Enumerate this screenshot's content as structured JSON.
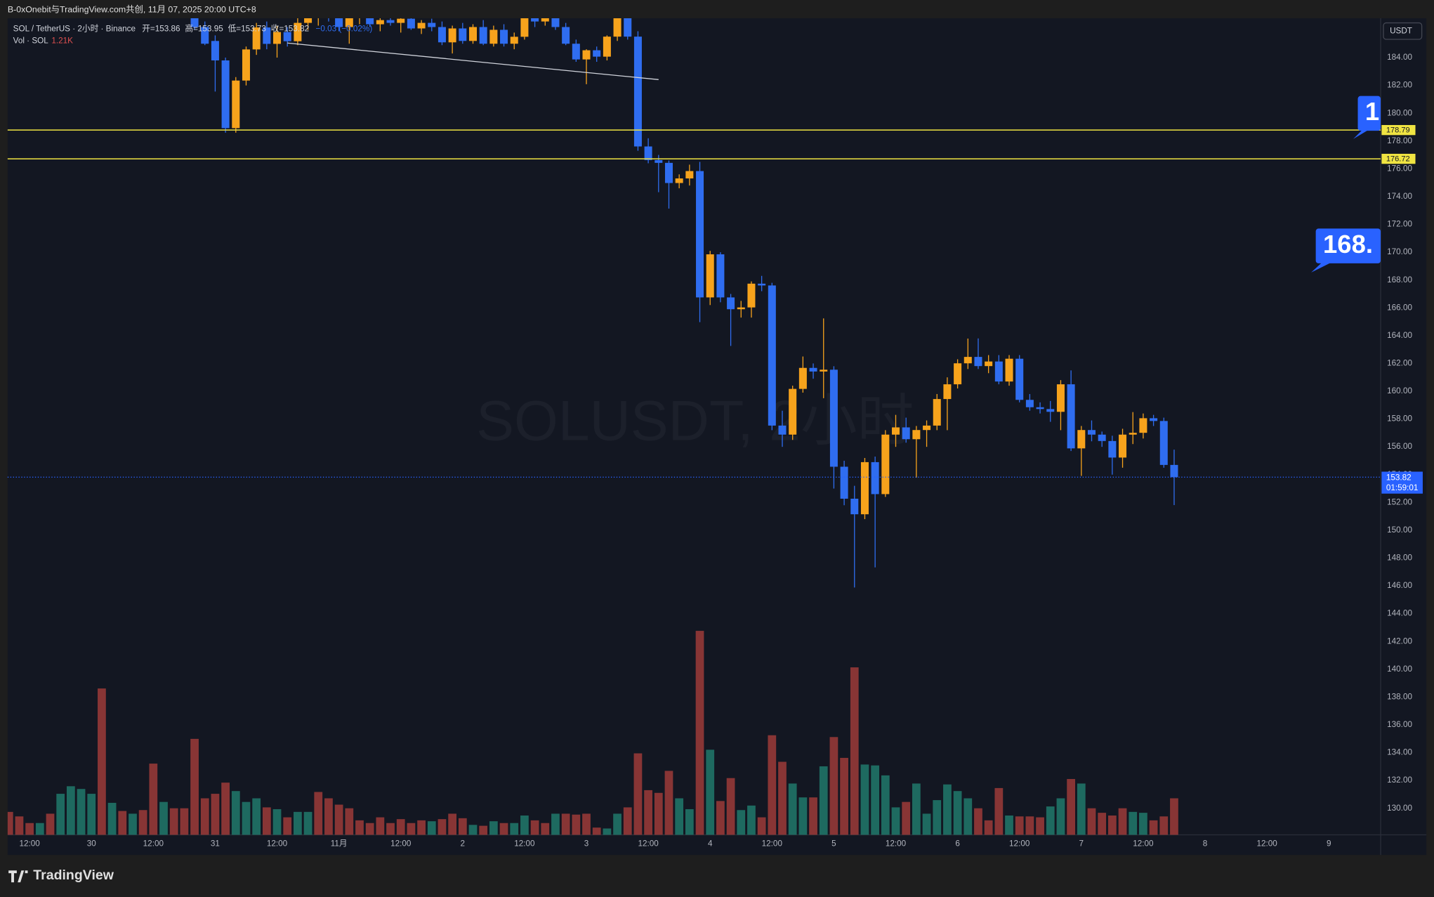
{
  "header": {
    "title": "B-0xOnebit与TradingView.com共创, 11月 07, 2025 20:00 UTC+8"
  },
  "chart_data": {
    "type": "candlestick",
    "legend": {
      "symbol": "SOL / TetherUS · 2小时 · Binance",
      "open": "开=153.86",
      "high": "高=153.95",
      "low": "低=153.73",
      "close": "收=153.82",
      "change": "−0.03 (−0.02%)",
      "volume": "Vol · SOL"
    },
    "currency": "USDT",
    "watermark": "SOLUSDT, 2小时",
    "up_color": "#f7a31c",
    "down_color": "#2f6df0",
    "x": [
      32,
      34,
      36,
      38,
      40,
      42,
      44,
      46,
      48,
      50,
      52,
      54,
      56,
      58,
      60,
      62,
      64,
      66,
      68,
      70,
      72,
      74,
      76,
      78,
      80,
      82,
      84,
      86,
      88,
      90,
      92,
      94,
      96,
      98,
      100,
      102,
      104,
      106,
      108,
      110,
      112,
      114,
      116,
      118,
      120,
      122,
      124,
      126,
      128,
      130,
      132,
      134,
      136,
      138,
      140,
      142,
      144,
      146,
      148,
      150,
      152,
      154,
      156,
      158,
      160,
      162,
      164,
      166,
      168,
      170,
      172,
      174,
      176,
      178,
      180,
      182,
      184,
      186,
      188,
      190,
      192,
      194,
      196,
      198,
      200,
      202,
      204,
      206,
      208,
      210,
      212,
      214,
      216,
      218,
      220,
      222
    ],
    "open": [
      187.5,
      186.2,
      185.2,
      183.8,
      178.93,
      182.35,
      184.59,
      186.17,
      184.99,
      185.84,
      185.18,
      186.5,
      187.0,
      187.3,
      186.9,
      186.2,
      186.9,
      187.0,
      186.4,
      186.7,
      186.5,
      186.8,
      186.1,
      186.5,
      186.2,
      185.1,
      186.1,
      185.2,
      186.2,
      185.0,
      186.0,
      185.0,
      185.5,
      186.9,
      186.6,
      187.0,
      186.2,
      185.0,
      183.87,
      184.53,
      184.07,
      185.51,
      186.95,
      185.51,
      177.61,
      176.63,
      176.43,
      174.98,
      175.31,
      175.84,
      166.75,
      169.85,
      166.75,
      165.9,
      166.03,
      167.74,
      167.61,
      157.53,
      156.88,
      160.17,
      161.68,
      161.42,
      161.55,
      154.57,
      152.27,
      151.15,
      154.9,
      152.6,
      156.88,
      157.4,
      156.55,
      157.21,
      157.53,
      159.44,
      160.5,
      162.01,
      162.47,
      161.81,
      162.14,
      160.7,
      162.34,
      159.38,
      158.85,
      158.72,
      158.52,
      160.5,
      155.89,
      157.21,
      156.88,
      156.42,
      155.23,
      156.88,
      157.01,
      158.06,
      157.86,
      154.7
    ],
    "high": [
      187.9,
      186.6,
      185.6,
      184.0,
      182.6,
      184.8,
      186.5,
      186.6,
      186.3,
      186.2,
      187.0,
      187.3,
      187.6,
      187.8,
      187.4,
      187.1,
      187.3,
      187.5,
      186.9,
      187.2,
      186.9,
      187.2,
      186.7,
      186.8,
      186.6,
      186.3,
      186.5,
      186.4,
      186.7,
      186.3,
      186.4,
      185.8,
      187.2,
      187.4,
      187.3,
      187.4,
      186.5,
      185.3,
      184.6,
      184.8,
      185.6,
      187.3,
      187.4,
      185.9,
      178.2,
      177.0,
      176.6,
      175.6,
      176.3,
      176.5,
      170.1,
      170.0,
      167.0,
      166.5,
      167.9,
      168.3,
      167.8,
      158.6,
      160.4,
      162.5,
      162.0,
      165.24,
      161.8,
      155.0,
      153.2,
      155.2,
      155.3,
      157.2,
      158.3,
      158.1,
      157.5,
      157.9,
      159.8,
      161.0,
      162.3,
      163.79,
      163.8,
      162.6,
      162.6,
      162.6,
      162.6,
      159.8,
      159.2,
      159.3,
      160.8,
      161.5,
      157.5,
      157.9,
      157.1,
      156.8,
      157.3,
      158.5,
      158.4,
      158.3,
      158.1,
      155.8
    ],
    "low": [
      186.0,
      184.9,
      181.56,
      178.6,
      178.6,
      182.0,
      184.2,
      184.6,
      184.0,
      184.8,
      184.9,
      186.0,
      186.3,
      186.6,
      185.9,
      185.0,
      186.4,
      186.2,
      185.9,
      186.3,
      185.8,
      186.0,
      185.7,
      185.9,
      184.9,
      184.3,
      185.0,
      185.0,
      184.9,
      184.8,
      184.8,
      184.6,
      185.3,
      186.2,
      186.3,
      186.0,
      184.9,
      183.7,
      182.09,
      183.7,
      183.8,
      185.2,
      185.3,
      177.3,
      176.4,
      174.32,
      173.14,
      174.6,
      174.8,
      164.97,
      166.2,
      166.4,
      163.26,
      165.3,
      165.3,
      167.2,
      157.2,
      156.0,
      156.5,
      159.9,
      160.9,
      159.5,
      153.0,
      151.8,
      145.88,
      150.8,
      147.33,
      152.4,
      156.0,
      156.3,
      153.78,
      156.0,
      157.2,
      157.2,
      160.2,
      161.6,
      161.6,
      161.3,
      160.5,
      160.4,
      159.2,
      158.6,
      158.4,
      157.8,
      157.2,
      155.7,
      153.91,
      156.4,
      156.0,
      154.0,
      154.5,
      156.2,
      156.6,
      157.5,
      154.5,
      151.81
    ],
    "close": [
      186.2,
      185.0,
      183.8,
      178.93,
      182.35,
      184.59,
      186.17,
      184.99,
      185.84,
      185.18,
      186.5,
      186.9,
      187.3,
      186.9,
      186.2,
      186.9,
      187.0,
      186.4,
      186.7,
      186.5,
      186.8,
      186.1,
      186.5,
      186.2,
      185.1,
      186.1,
      185.2,
      186.2,
      185.0,
      186.0,
      185.0,
      185.5,
      186.9,
      186.6,
      187.0,
      186.2,
      185.0,
      183.87,
      184.53,
      184.07,
      185.51,
      186.95,
      185.51,
      177.61,
      176.63,
      176.43,
      174.98,
      175.31,
      175.84,
      166.75,
      169.85,
      166.75,
      165.9,
      166.03,
      167.74,
      167.61,
      157.53,
      156.88,
      160.17,
      161.68,
      161.42,
      161.55,
      154.57,
      152.27,
      151.15,
      154.9,
      152.6,
      156.88,
      157.4,
      156.55,
      157.21,
      157.53,
      159.44,
      160.5,
      162.01,
      162.47,
      161.81,
      162.14,
      160.7,
      162.34,
      159.38,
      158.85,
      158.72,
      158.52,
      160.5,
      155.89,
      157.21,
      156.88,
      156.42,
      155.23,
      156.88,
      157.01,
      158.06,
      157.86,
      154.7,
      153.82
    ],
    "xlim": [
      -4.26,
      262.06
    ],
    "xticks": [
      {
        "value": 0,
        "label": "12:00"
      },
      {
        "value": 12,
        "label": "30"
      },
      {
        "value": 24,
        "label": "12:00"
      },
      {
        "value": 36,
        "label": "31"
      },
      {
        "value": 48,
        "label": "12:00"
      },
      {
        "value": 60,
        "label": "11月"
      },
      {
        "value": 72,
        "label": "12:00"
      },
      {
        "value": 84,
        "label": "2"
      },
      {
        "value": 96,
        "label": "12:00"
      },
      {
        "value": 108,
        "label": "3"
      },
      {
        "value": 120,
        "label": "12:00"
      },
      {
        "value": 132,
        "label": "4"
      },
      {
        "value": 144,
        "label": "12:00"
      },
      {
        "value": 156,
        "label": "5"
      },
      {
        "value": 168,
        "label": "12:00"
      },
      {
        "value": 180,
        "label": "6"
      },
      {
        "value": 192,
        "label": "12:00"
      },
      {
        "value": 204,
        "label": "7"
      },
      {
        "value": 216,
        "label": "12:00"
      },
      {
        "value": 228,
        "label": "8"
      },
      {
        "value": 240,
        "label": "12:00"
      },
      {
        "value": 252,
        "label": "9"
      }
    ],
    "ylim": [
      128.09,
      186.83
    ],
    "yticks": [
      {
        "value": 130,
        "label": "130.00"
      },
      {
        "value": 132,
        "label": "132.00"
      },
      {
        "value": 134,
        "label": "134.00"
      },
      {
        "value": 136,
        "label": "136.00"
      },
      {
        "value": 138,
        "label": "138.00"
      },
      {
        "value": 140,
        "label": "140.00"
      },
      {
        "value": 142,
        "label": "142.00"
      },
      {
        "value": 144,
        "label": "144.00"
      },
      {
        "value": 146,
        "label": "146.00"
      },
      {
        "value": 148,
        "label": "148.00"
      },
      {
        "value": 150,
        "label": "150.00"
      },
      {
        "value": 152,
        "label": "152.00"
      },
      {
        "value": 154,
        "label": "154.00"
      },
      {
        "value": 156,
        "label": "156.00"
      },
      {
        "value": 158,
        "label": "158.00"
      },
      {
        "value": 160,
        "label": "160.00"
      },
      {
        "value": 162,
        "label": "162.00"
      },
      {
        "value": 164,
        "label": "164.00"
      },
      {
        "value": 166,
        "label": "166.00"
      },
      {
        "value": 168,
        "label": "168.00"
      },
      {
        "value": 170,
        "label": "170.00"
      },
      {
        "value": 172,
        "label": "172.00"
      },
      {
        "value": 174,
        "label": "174.00"
      },
      {
        "value": 176,
        "label": "176.00"
      },
      {
        "value": 178,
        "label": "178.00"
      },
      {
        "value": 180,
        "label": "180.00"
      },
      {
        "value": 182,
        "label": "182.00"
      },
      {
        "value": 184,
        "label": "184.00"
      }
    ],
    "volume": {
      "current_label": "1.21K",
      "ylim": [
        0,
        27.06
      ],
      "x": [
        -4,
        -2,
        0,
        2,
        4,
        6,
        8,
        10,
        12,
        14,
        16,
        18,
        20,
        22,
        24,
        26,
        28,
        30,
        32,
        34,
        36,
        38,
        40,
        42,
        44,
        46,
        48,
        50,
        52,
        54,
        56,
        58,
        60,
        62,
        64,
        66,
        68,
        70,
        72,
        74,
        76,
        78,
        80,
        82,
        84,
        86,
        88,
        90,
        92,
        94,
        96,
        98,
        100,
        102,
        104,
        106,
        108,
        110,
        112,
        114,
        116,
        118,
        120,
        122,
        124,
        126,
        128,
        130,
        132,
        134,
        136,
        138,
        140,
        142,
        144,
        146,
        148,
        150,
        152,
        154,
        156,
        158,
        160,
        162,
        164,
        166,
        168,
        170,
        172,
        174,
        176,
        178,
        180,
        182,
        184,
        186,
        188,
        190,
        192,
        194,
        196,
        198,
        200,
        202,
        204,
        206,
        208,
        210,
        212,
        214,
        216,
        218,
        220,
        222
      ],
      "values": [
        0.76,
        0.61,
        0.39,
        0.39,
        0.7,
        1.36,
        1.61,
        1.52,
        1.36,
        4.85,
        1.06,
        0.79,
        0.7,
        0.82,
        2.36,
        1.09,
        0.88,
        0.88,
        3.18,
        1.21,
        1.36,
        1.73,
        1.45,
        1.09,
        1.21,
        0.91,
        0.85,
        0.58,
        0.76,
        0.76,
        1.42,
        1.21,
        1.0,
        0.88,
        0.48,
        0.39,
        0.58,
        0.39,
        0.52,
        0.39,
        0.48,
        0.45,
        0.52,
        0.7,
        0.55,
        0.33,
        0.3,
        0.45,
        0.39,
        0.39,
        0.64,
        0.48,
        0.39,
        0.7,
        0.7,
        0.67,
        0.7,
        0.24,
        0.21,
        0.7,
        0.91,
        2.7,
        1.48,
        1.39,
        2.12,
        1.21,
        0.85,
        6.76,
        2.82,
        1.12,
        1.88,
        0.82,
        0.97,
        0.58,
        3.3,
        2.42,
        1.7,
        1.24,
        1.24,
        2.27,
        3.24,
        2.55,
        5.55,
        2.33,
        2.3,
        1.97,
        0.91,
        1.09,
        1.7,
        0.7,
        1.15,
        1.67,
        1.45,
        1.21,
        0.88,
        0.48,
        1.55,
        0.64,
        0.61,
        0.61,
        0.58,
        0.94,
        1.21,
        1.85,
        1.7,
        0.88,
        0.73,
        0.64,
        0.88,
        0.76,
        0.73,
        0.48,
        0.61,
        1.21
      ],
      "colors": [
        "#883535",
        "#883535",
        "#883535",
        "#1e6a60",
        "#883535",
        "#1e6a60",
        "#1e6a60",
        "#1e6a60",
        "#1e6a60",
        "#883535",
        "#1e6a60",
        "#883535",
        "#1e6a60",
        "#883535",
        "#883535",
        "#1e6a60",
        "#883535",
        "#883535",
        "#883535",
        "#883535",
        "#883535",
        "#883535",
        "#1e6a60",
        "#1e6a60",
        "#1e6a60",
        "#883535",
        "#1e6a60",
        "#883535",
        "#1e6a60",
        "#1e6a60",
        "#883535",
        "#883535",
        "#883535",
        "#883535",
        "#883535",
        "#883535",
        "#883535",
        "#883535",
        "#883535",
        "#883535",
        "#883535",
        "#1e6a60",
        "#883535",
        "#883535",
        "#883535",
        "#1e6a60",
        "#883535",
        "#1e6a60",
        "#883535",
        "#1e6a60",
        "#1e6a60",
        "#883535",
        "#883535",
        "#1e6a60",
        "#883535",
        "#883535",
        "#883535",
        "#883535",
        "#1e6a60",
        "#1e6a60",
        "#883535",
        "#883535",
        "#883535",
        "#883535",
        "#883535",
        "#1e6a60",
        "#1e6a60",
        "#883535",
        "#1e6a60",
        "#883535",
        "#883535",
        "#1e6a60",
        "#1e6a60",
        "#883535",
        "#883535",
        "#883535",
        "#1e6a60",
        "#1e6a60",
        "#883535",
        "#1e6a60",
        "#883535",
        "#883535",
        "#883535",
        "#1e6a60",
        "#1e6a60",
        "#1e6a60",
        "#1e6a60",
        "#883535",
        "#1e6a60",
        "#1e6a60",
        "#1e6a60",
        "#1e6a60",
        "#1e6a60",
        "#1e6a60",
        "#883535",
        "#883535",
        "#883535",
        "#1e6a60",
        "#883535",
        "#883535",
        "#883535",
        "#1e6a60",
        "#1e6a60",
        "#883535",
        "#1e6a60",
        "#883535",
        "#883535",
        "#883535",
        "#883535",
        "#1e6a60",
        "#1e6a60",
        "#883535",
        "#883535",
        "#883535"
      ]
    },
    "levels": [
      {
        "value": 178.79,
        "label": "178.79",
        "color": "#f0e442"
      },
      {
        "value": 176.72,
        "label": "176.72",
        "color": "#f0e442"
      }
    ],
    "last_price": {
      "value": 153.82,
      "label": "153.82",
      "countdown": "01:59:01",
      "color": "#2962ff"
    },
    "callouts": [
      {
        "label": "1"
      },
      {
        "label": "168."
      }
    ],
    "trendline": {
      "x": [
        50,
        122
      ],
      "y": [
        185.05,
        182.42
      ],
      "color": "#d1d4dc"
    }
  },
  "footer": {
    "brand": "TradingView"
  }
}
